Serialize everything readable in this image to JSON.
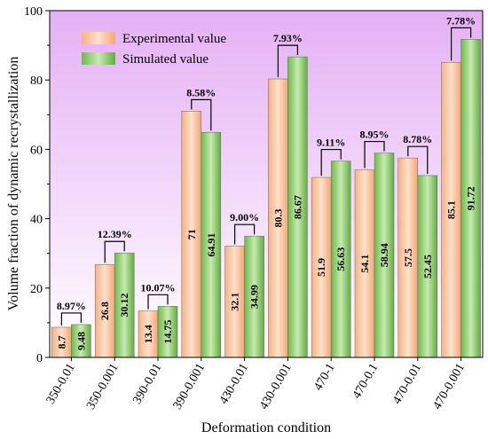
{
  "chart_data": {
    "type": "bar",
    "xlabel": "Deformation condition",
    "ylabel": "Volume fraction of dynamic recrystallization",
    "ylim": [
      0,
      100
    ],
    "yticks": [
      0,
      20,
      40,
      60,
      80,
      100
    ],
    "legend_position": "top-left",
    "grid": false,
    "categories": [
      "350-0.01",
      "350-0.001",
      "390-0.01",
      "390-0.001",
      "430-0.01",
      "430-0.001",
      "470-1",
      "470-0.1",
      "470-0.01",
      "470-0.001"
    ],
    "series": [
      {
        "name": "Experimental value",
        "color": "#f7bf95",
        "values": [
          8.7,
          26.8,
          13.4,
          71,
          32.1,
          80.3,
          51.9,
          54.1,
          57.5,
          85.1
        ],
        "labels": [
          "8.7",
          "26.8",
          "13.4",
          "71",
          "32.1",
          "80.3",
          "51.9",
          "54.1",
          "57.5",
          "85.1"
        ]
      },
      {
        "name": "Simulated value",
        "color": "#8ccc6a",
        "values": [
          9.48,
          30.12,
          14.75,
          64.91,
          34.99,
          86.67,
          56.63,
          58.94,
          52.45,
          91.72
        ],
        "labels": [
          "9.48",
          "30.12",
          "14.75",
          "64.91",
          "34.99",
          "86.67",
          "56.63",
          "58.94",
          "52.45",
          "91.72"
        ]
      }
    ],
    "annotations": [
      "8.97%",
      "12.39%",
      "10.07%",
      "8.58%",
      "9.00%",
      "7.93%",
      "9.11%",
      "8.95%",
      "8.78%",
      "7.78%"
    ],
    "background": {
      "top": "#e4b0f4",
      "bottom": "#ffffff"
    }
  }
}
